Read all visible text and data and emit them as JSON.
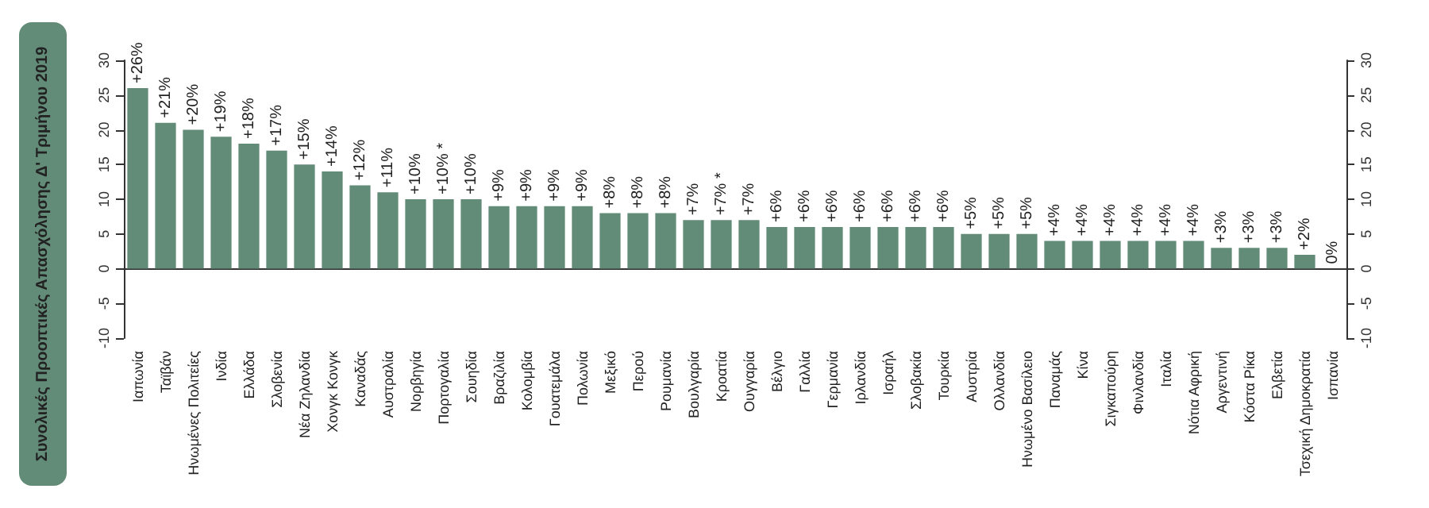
{
  "chart_data": {
    "type": "bar",
    "ylabel": "Συνολικές Προοπτικές Απασχόλησης Δ' Τριμήνου 2019",
    "categories": [
      "Ιαπωνία",
      "Ταϊβάν",
      "Ηνωμένες Πολιτείες",
      "Ινδία",
      "Ελλάδα",
      "Σλοβενία",
      "Νέα Ζηλανδία",
      "Χονγκ Κονγκ",
      "Καναδάς",
      "Αυστραλία",
      "Νορβηγία",
      "Πορτογαλία",
      "Σουηδία",
      "Βραζιλία",
      "Κολομβία",
      "Γουατεμάλα",
      "Πολωνία",
      "Μεξικό",
      "Περού",
      "Ρουμανία",
      "Βουλγαρία",
      "Κροατία",
      "Ουγγαρία",
      "Βέλγιο",
      "Γαλλία",
      "Γερμανία",
      "Ιρλανδία",
      "Ισραήλ",
      "Σλοβακία",
      "Τουρκία",
      "Αυστρία",
      "Ολλανδία",
      "Ηνωμένο Βασίλειο",
      "Παναμάς",
      "Κίνα",
      "Σιγκαπούρη",
      "Φινλανδία",
      "Ιταλία",
      "Νότια Αφρική",
      "Αργεντινή",
      "Κόστα Ρίκα",
      "Ελβετία",
      "Τσεχική Δημοκρατία",
      "Ισπανία"
    ],
    "values": [
      26,
      21,
      20,
      19,
      18,
      17,
      15,
      14,
      12,
      11,
      10,
      10,
      10,
      9,
      9,
      9,
      9,
      8,
      8,
      8,
      7,
      7,
      7,
      6,
      6,
      6,
      6,
      6,
      6,
      6,
      5,
      5,
      5,
      4,
      4,
      4,
      4,
      4,
      4,
      3,
      3,
      3,
      2,
      0
    ],
    "value_labels": [
      "+26%",
      "+21%",
      "+20%",
      "+19%",
      "+18%",
      "+17%",
      "+15%",
      "+14%",
      "+12%",
      "+11%",
      "+10%",
      "+10% *",
      "+10%",
      "+9%",
      "+9%",
      "+9%",
      "+9%",
      "+8%",
      "+8%",
      "+8%",
      "+7%",
      "+7% *",
      "+7%",
      "+6%",
      "+6%",
      "+6%",
      "+6%",
      "+6%",
      "+6%",
      "+6%",
      "+5%",
      "+5%",
      "+5%",
      "+4%",
      "+4%",
      "+4%",
      "+4%",
      "+4%",
      "+4%",
      "+3%",
      "+3%",
      "+3%",
      "+2%",
      "0%"
    ],
    "color": "#628c78",
    "ylim": [
      -10,
      30
    ],
    "yticks": [
      -10,
      -5,
      0,
      5,
      10,
      15,
      20,
      25,
      30
    ],
    "y2lim": [
      -10,
      30
    ],
    "y2ticks": [
      -10,
      -5,
      0,
      5,
      10,
      15,
      20,
      25,
      30
    ]
  }
}
